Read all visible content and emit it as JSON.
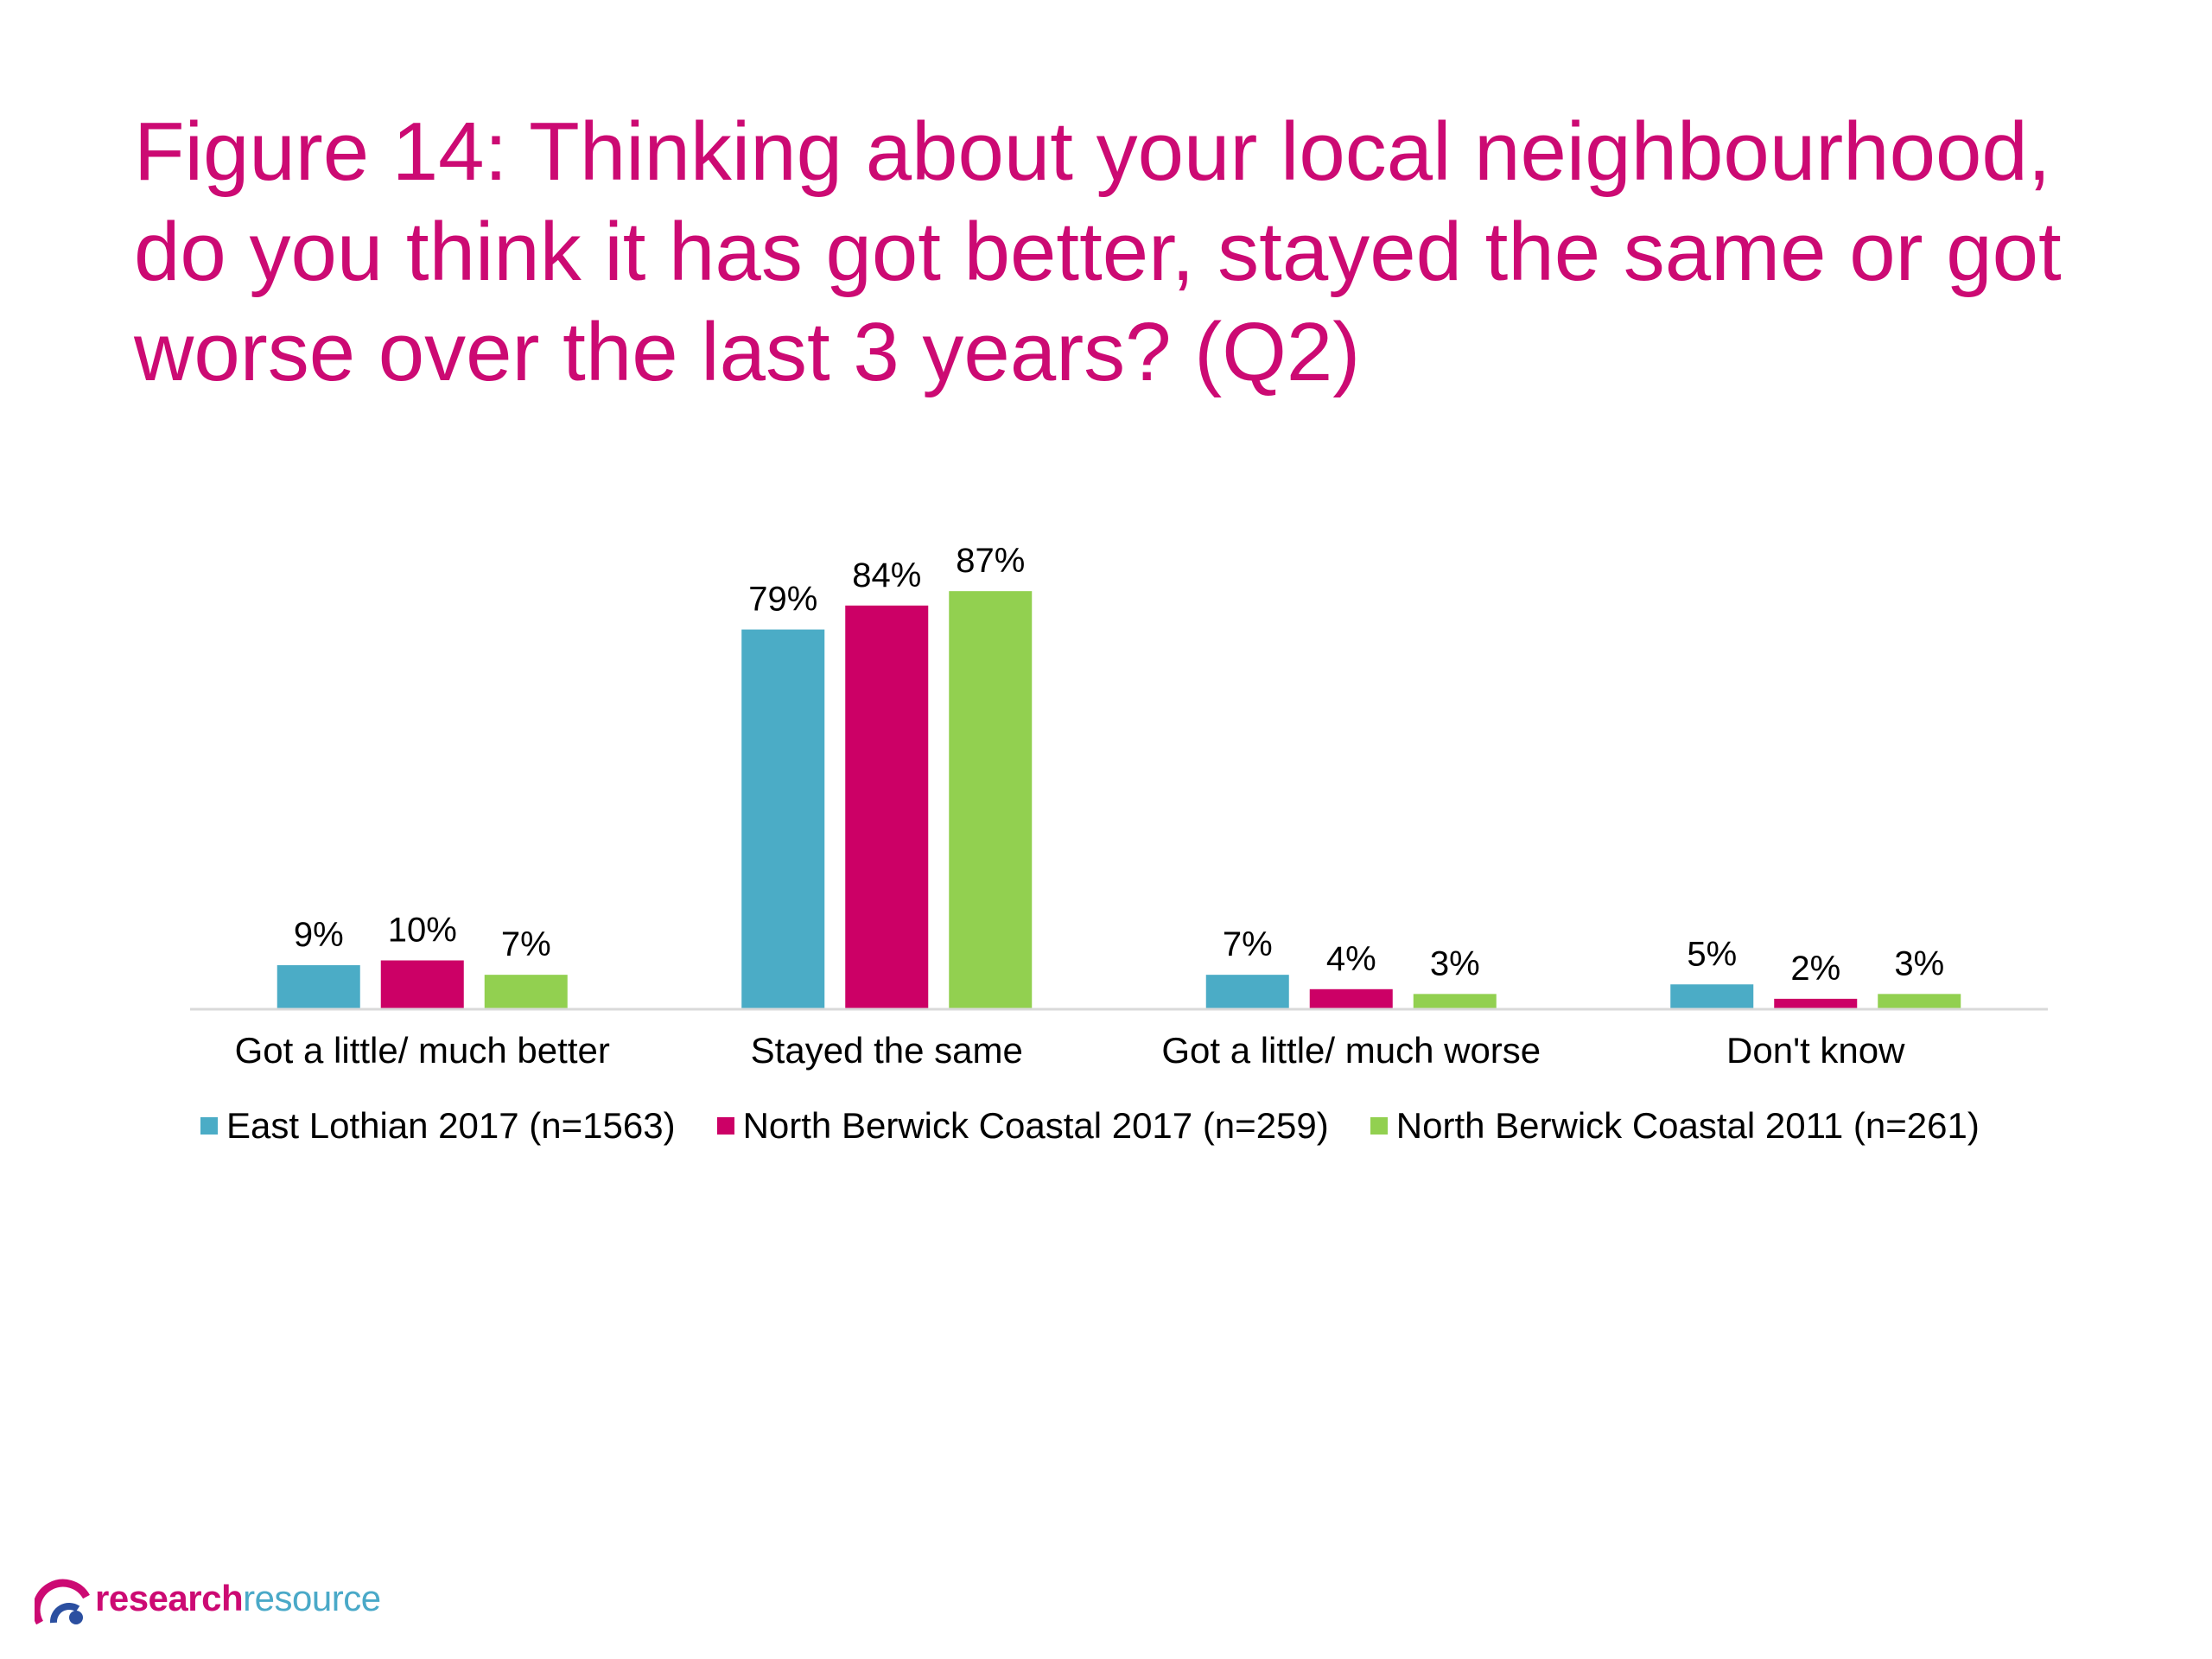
{
  "title_lines": [
    "Figure 14: Thinking about your local neighbourhood,",
    "do you think it has got better, stayed the same or got",
    "worse over the last 3 years? (Q2)"
  ],
  "logo": {
    "part1": "research",
    "part2": "resource"
  },
  "colors": {
    "title": "#cc0a73",
    "series": [
      "#4bacc6",
      "#cc0066",
      "#92d050"
    ]
  },
  "chart_data": {
    "type": "bar",
    "title": "Figure 14: Thinking about your local neighbourhood, do you think it has got better, stayed the same or got worse over the last 3 years? (Q2)",
    "categories": [
      "Got a little/ much better",
      "Stayed the same",
      "Got a little/ much worse",
      "Don't know"
    ],
    "series": [
      {
        "name": "East Lothian 2017 (n=1563)",
        "values": [
          9,
          79,
          7,
          5
        ],
        "labels": [
          "9%",
          "79%",
          "7%",
          "5%"
        ]
      },
      {
        "name": "North Berwick Coastal 2017 (n=259)",
        "values": [
          10,
          84,
          4,
          2
        ],
        "labels": [
          "10%",
          "84%",
          "4%",
          "2%"
        ]
      },
      {
        "name": "North Berwick Coastal 2011 (n=261)",
        "values": [
          7,
          87,
          3,
          3
        ],
        "labels": [
          "7%",
          "87%",
          "3%",
          "3%"
        ]
      }
    ],
    "unit": "%",
    "ylim": [
      0,
      100
    ],
    "grid": false,
    "legend_position": "bottom"
  }
}
